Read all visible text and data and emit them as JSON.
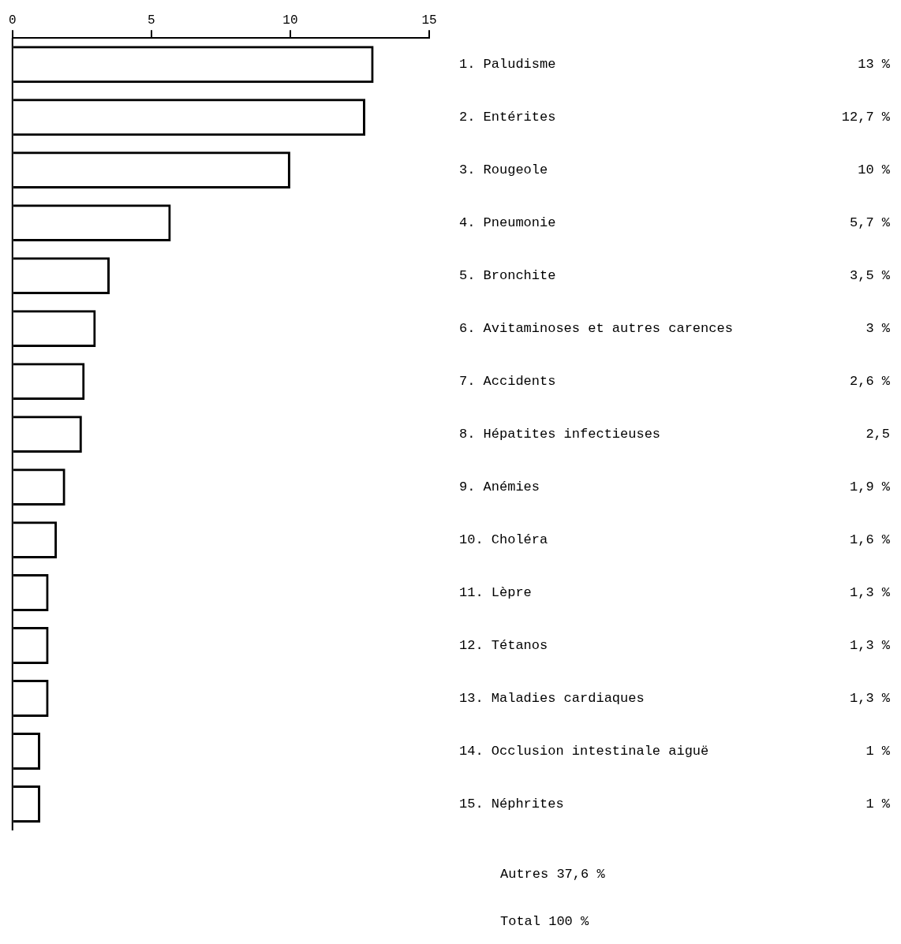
{
  "chart_data": {
    "type": "bar",
    "orientation": "horizontal",
    "categories": [
      "1. Paludisme",
      "2. Entérites",
      "3. Rougeole",
      "4. Pneumonie",
      "5. Bronchite",
      "6. Avitaminoses et autres carences",
      "7. Accidents",
      "8. Hépatites infectieuses",
      "9. Anémies",
      "10. Choléra",
      "11. Lèpre",
      "12. Tétanos",
      "13. Maladies cardiaques",
      "14. Occlusion intestinale aiguë",
      "15. Néphrites"
    ],
    "values": [
      13,
      12.7,
      10,
      5.7,
      3.5,
      3,
      2.6,
      2.5,
      1.9,
      1.6,
      1.3,
      1.3,
      1.3,
      1,
      1
    ],
    "value_labels": [
      "13 %",
      "12,7 %",
      "10 %",
      "5,7 %",
      "3,5 %",
      "3 %",
      "2,6 %",
      "2,5",
      "1,9 %",
      "1,6 %",
      "1,3 %",
      "1,3 %",
      "1,3 %",
      "1 %",
      "1 %"
    ],
    "color": "#000000",
    "xlim": [
      0,
      15
    ],
    "xticks": [
      0,
      5,
      10,
      15
    ],
    "grid": false,
    "legend": false,
    "annotations": [
      "Autres 37,6 %",
      "Total 100 %"
    ]
  }
}
